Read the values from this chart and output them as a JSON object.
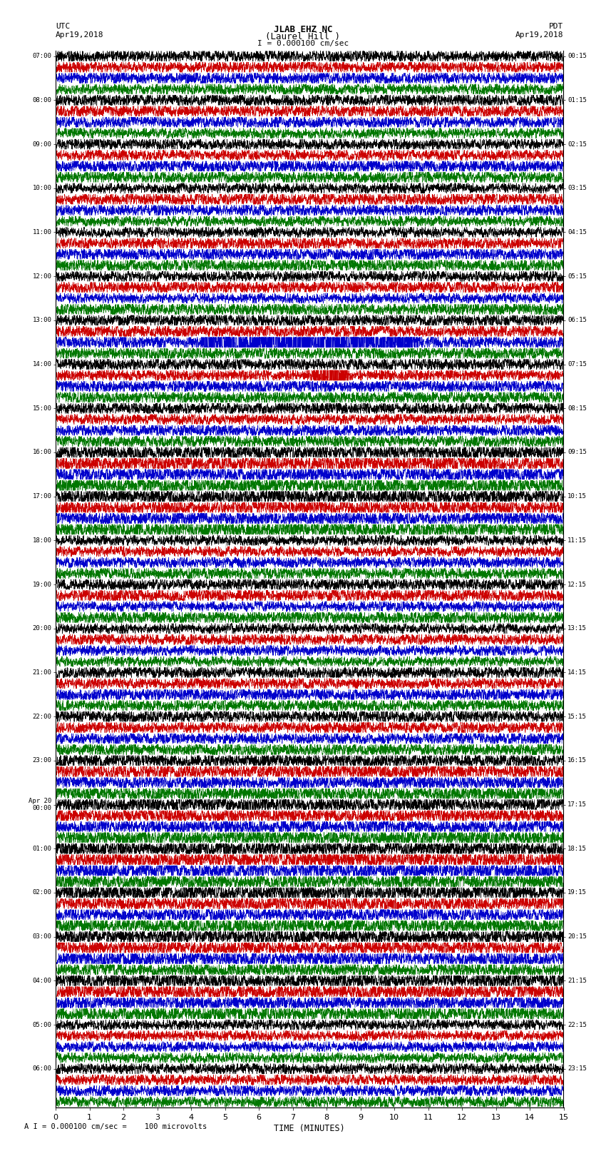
{
  "title_line1": "JLAB EHZ NC",
  "title_line2": "(Laurel Hill )",
  "scale_text": "I = 0.000100 cm/sec",
  "footer_text": "A I = 0.000100 cm/sec =    100 microvolts",
  "utc_label": "UTC",
  "utc_date": "Apr19,2018",
  "pdt_label": "PDT",
  "pdt_date": "Apr19,2018",
  "xlabel": "TIME (MINUTES)",
  "xlim": [
    0,
    15
  ],
  "xticks": [
    0,
    1,
    2,
    3,
    4,
    5,
    6,
    7,
    8,
    9,
    10,
    11,
    12,
    13,
    14,
    15
  ],
  "bg_color": "#ffffff",
  "trace_colors": [
    "#000000",
    "#cc0000",
    "#0000cc",
    "#007700"
  ],
  "grid_color": "#aaaaaa",
  "utc_labels": [
    "07:00",
    "08:00",
    "09:00",
    "10:00",
    "11:00",
    "12:00",
    "13:00",
    "14:00",
    "15:00",
    "16:00",
    "17:00",
    "18:00",
    "19:00",
    "20:00",
    "21:00",
    "22:00",
    "23:00",
    "Apr 20\n00:00",
    "01:00",
    "02:00",
    "03:00",
    "04:00",
    "05:00",
    "06:00"
  ],
  "pdt_labels": [
    "00:15",
    "01:15",
    "02:15",
    "03:15",
    "04:15",
    "05:15",
    "06:15",
    "07:15",
    "08:15",
    "09:15",
    "10:15",
    "11:15",
    "12:15",
    "13:15",
    "14:15",
    "15:15",
    "16:15",
    "17:15",
    "18:15",
    "19:15",
    "20:15",
    "21:15",
    "22:15",
    "23:15"
  ],
  "num_groups": 24,
  "traces_per_group": 4,
  "samples": 3600,
  "noise_seed": 42,
  "base_amp": 0.32,
  "earthquake_groups": [
    6,
    7
  ],
  "active_groups": [
    9,
    10,
    16,
    17,
    18,
    19,
    20,
    21
  ]
}
